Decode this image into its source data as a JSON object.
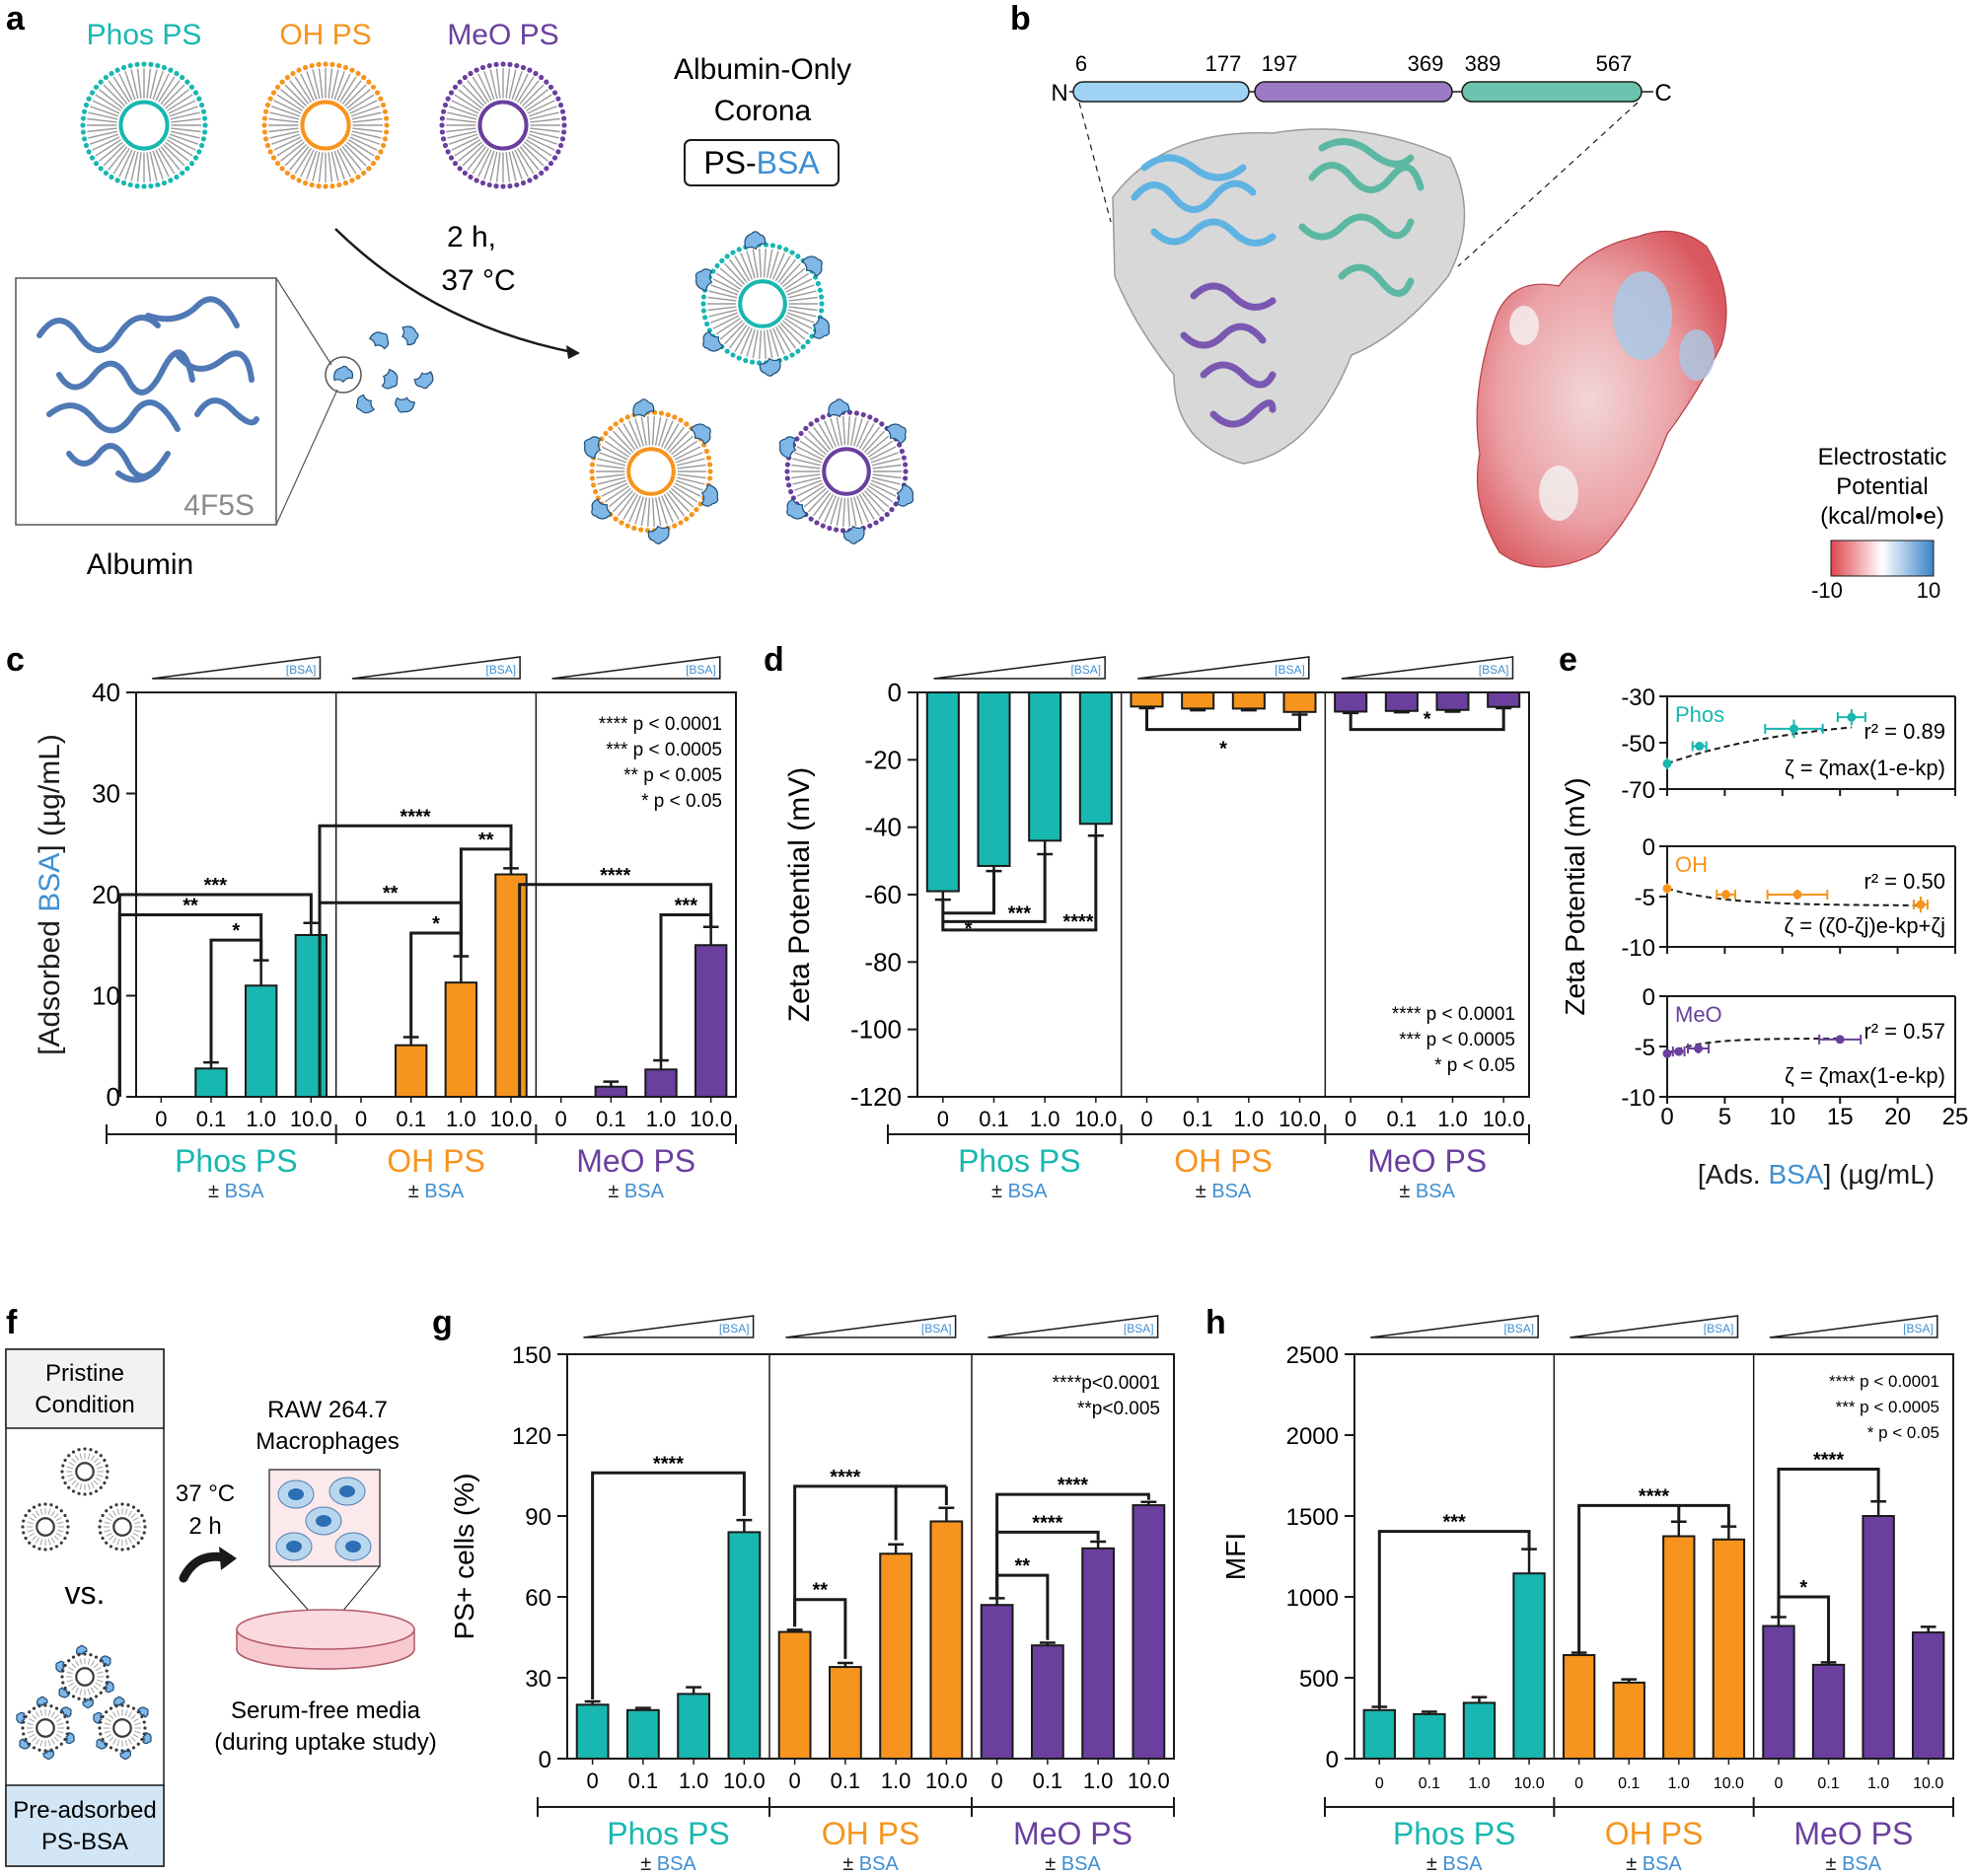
{
  "colors": {
    "phos": "#18b7b0",
    "oh": "#f7941d",
    "meo": "#6a3f9e",
    "bsa": "#3f8fd2",
    "n_domain": "#9fd3f3",
    "mid_domain": "#9b7ac6",
    "c_domain": "#6cc4b0",
    "axis": "#1a1a1a"
  },
  "icons": [
    "liposome-icon",
    "albumin-protein-icon",
    "macrophage-icon",
    "petri-dish-icon",
    "curved-arrow-icon"
  ],
  "panel_letters": [
    "a",
    "b",
    "c",
    "d",
    "e",
    "f",
    "g",
    "h"
  ],
  "panel_a": {
    "labels": [
      "Phos PS",
      "OH PS",
      "MeO PS"
    ],
    "corona_title_1": "Albumin-Only",
    "corona_title_2": "Corona",
    "box_ps": "PS-",
    "box_bsa": "BSA",
    "condition_1": "2 h,",
    "condition_2": "37 °C",
    "pdb_id": "4F5S",
    "protein_label": "Albumin"
  },
  "panel_b": {
    "n_label": "N",
    "c_label": "C",
    "residues": [
      "6",
      "177",
      "197",
      "369",
      "389",
      "567"
    ],
    "legend_title_1": "Electrostatic",
    "legend_title_2": "Potential",
    "legend_title_3": "(kcal/mol•e)",
    "legend_min": "-10",
    "legend_max": "10"
  },
  "common": {
    "bsa_wedge": "[BSA]",
    "pm_bsa": "± ",
    "bsa_word": "BSA",
    "groups": [
      "Phos PS",
      "OH PS",
      "MeO PS"
    ],
    "concentrations": [
      "0",
      "0.1",
      "1.0",
      "10.0"
    ]
  },
  "chart_data": [
    {
      "panel": "c",
      "type": "bar",
      "ylabel_pre": "[Adsorbed ",
      "ylabel_bsa": "BSA",
      "ylabel_post": "] (µg/mL)",
      "ylim": [
        0,
        40
      ],
      "yticks": [
        "0",
        "10",
        "20",
        "30",
        "40"
      ],
      "categories": [
        "0",
        "0.1",
        "1.0",
        "10.0"
      ],
      "series": [
        {
          "group": "Phos PS",
          "values": [
            0,
            2.8,
            11.0,
            16.0
          ],
          "errors": [
            0,
            0.6,
            2.5,
            1.2
          ]
        },
        {
          "group": "OH PS",
          "values": [
            0,
            5.1,
            11.3,
            22.0
          ],
          "errors": [
            0,
            0.8,
            2.6,
            0.6
          ]
        },
        {
          "group": "MeO PS",
          "values": [
            0,
            1.0,
            2.7,
            15.0
          ],
          "errors": [
            0,
            0.5,
            0.9,
            1.8
          ]
        }
      ],
      "significance": [
        "***",
        "**",
        "*",
        "****",
        "**",
        "**",
        "*",
        "****",
        "***"
      ],
      "legend": [
        "**** p < 0.0001",
        "*** p < 0.0005",
        "** p < 0.005",
        "* p < 0.05"
      ]
    },
    {
      "panel": "d",
      "type": "bar",
      "ylabel": "Zeta Potential (mV)",
      "ylim": [
        -120,
        0
      ],
      "yticks": [
        "0",
        "-20",
        "-40",
        "-60",
        "-80",
        "-100",
        "-120"
      ],
      "categories": [
        "0",
        "0.1",
        "1.0",
        "10.0"
      ],
      "series": [
        {
          "group": "Phos PS",
          "values": [
            -59,
            -51.5,
            -44,
            -39
          ],
          "errors": [
            2.5,
            1.5,
            4.0,
            3.5
          ]
        },
        {
          "group": "OH PS",
          "values": [
            -4.2,
            -4.8,
            -4.8,
            -5.8
          ],
          "errors": [
            0.5,
            0.5,
            0.5,
            0.8
          ]
        },
        {
          "group": "MeO PS",
          "values": [
            -5.7,
            -5.5,
            -5.2,
            -4.3
          ],
          "errors": [
            0.4,
            0.4,
            0.5,
            0.4
          ]
        }
      ],
      "significance": [
        "*",
        "***",
        "****",
        "*",
        "*"
      ],
      "legend": [
        "**** p < 0.0001",
        "*** p < 0.0005",
        "* p < 0.05"
      ]
    },
    {
      "panel": "e",
      "type": "scatter",
      "ylabel": "Zeta Potential (mV)",
      "xlabel_pre": "[Ads. ",
      "xlabel_bsa": "BSA",
      "xlabel_post": "] (µg/mL)",
      "xlim": [
        0,
        25
      ],
      "xticks": [
        "0",
        "5",
        "10",
        "15",
        "20",
        "25"
      ],
      "subplots": [
        {
          "name": "Phos",
          "r2": "r² = 0.89",
          "eq": "ζ = ζmax(1-e-kp)",
          "ylim": [
            -70,
            -30
          ],
          "yticks": [
            "-30",
            "-50",
            "-70"
          ],
          "x": [
            0,
            2.8,
            11.0,
            16.0
          ],
          "y": [
            -59,
            -51.5,
            -44,
            -39
          ],
          "xerr": [
            0,
            0.6,
            2.5,
            1.2
          ],
          "yerr": [
            2.5,
            1.5,
            4.0,
            3.5
          ]
        },
        {
          "name": "OH",
          "r2": "r² = 0.50",
          "eq": "ζ = (ζ0-ζj)e-kp+ζj",
          "ylim": [
            -10,
            0
          ],
          "yticks": [
            "0",
            "-5",
            "-10"
          ],
          "x": [
            0,
            5.1,
            11.3,
            22.0
          ],
          "y": [
            -4.2,
            -4.8,
            -4.8,
            -5.8
          ],
          "xerr": [
            0,
            0.8,
            2.6,
            0.6
          ],
          "yerr": [
            0.5,
            0.5,
            0.5,
            0.8
          ]
        },
        {
          "name": "MeO",
          "r2": "r² = 0.57",
          "eq": "ζ = ζmax(1-e-kp)",
          "ylim": [
            -10,
            0
          ],
          "yticks": [
            "0",
            "-5",
            "-10"
          ],
          "x": [
            0,
            1.0,
            2.7,
            15.0
          ],
          "y": [
            -5.7,
            -5.5,
            -5.2,
            -4.3
          ],
          "xerr": [
            0,
            0.5,
            0.9,
            1.8
          ],
          "yerr": [
            0.4,
            0.4,
            0.5,
            0.4
          ]
        }
      ]
    },
    {
      "panel": "g",
      "type": "bar",
      "ylabel": "PS+ cells (%)",
      "ylim": [
        0,
        150
      ],
      "yticks": [
        "0",
        "30",
        "60",
        "90",
        "120",
        "150"
      ],
      "categories": [
        "0",
        "0.1",
        "1.0",
        "10.0"
      ],
      "series": [
        {
          "group": "Phos PS",
          "values": [
            20,
            18,
            24,
            84
          ],
          "errors": [
            1.2,
            0.8,
            2.5,
            4.5
          ]
        },
        {
          "group": "OH PS",
          "values": [
            47,
            34,
            76,
            88
          ],
          "errors": [
            0.8,
            1.5,
            3.5,
            5.0
          ]
        },
        {
          "group": "MeO PS",
          "values": [
            57,
            42,
            78,
            94
          ],
          "errors": [
            2.5,
            1.0,
            2.5,
            1.2
          ]
        }
      ],
      "significance": [
        "****",
        "**",
        "****",
        "**",
        "****",
        "****"
      ],
      "legend": [
        "****p<0.0001",
        "**p<0.005"
      ]
    },
    {
      "panel": "h",
      "type": "bar",
      "ylabel": "MFI",
      "ylim": [
        0,
        2500
      ],
      "yticks": [
        "0",
        "500",
        "1000",
        "1500",
        "2000",
        "2500"
      ],
      "categories": [
        "0",
        "0.1",
        "1.0",
        "10.0"
      ],
      "series": [
        {
          "group": "Phos PS",
          "values": [
            300,
            275,
            345,
            1145
          ],
          "errors": [
            20,
            15,
            35,
            150
          ]
        },
        {
          "group": "OH PS",
          "values": [
            640,
            470,
            1375,
            1355
          ],
          "errors": [
            15,
            20,
            90,
            80
          ]
        },
        {
          "group": "MeO PS",
          "values": [
            820,
            580,
            1500,
            780
          ],
          "errors": [
            55,
            15,
            90,
            35
          ]
        }
      ],
      "significance": [
        "***",
        "****",
        "*",
        "****"
      ],
      "legend": [
        "**** p < 0.0001",
        "*** p < 0.0005",
        "* p < 0.05"
      ]
    }
  ],
  "panel_f": {
    "pristine_1": "Pristine",
    "pristine_2": "Condition",
    "vs": "vs.",
    "pre_1": "Pre-adsorbed",
    "pre_2": "PS-BSA",
    "cond_1": "37 °C",
    "cond_2": "2 h",
    "cells_1": "RAW 264.7",
    "cells_2": "Macrophages",
    "media_1": "Serum-free media",
    "media_2": "(during uptake study)"
  }
}
